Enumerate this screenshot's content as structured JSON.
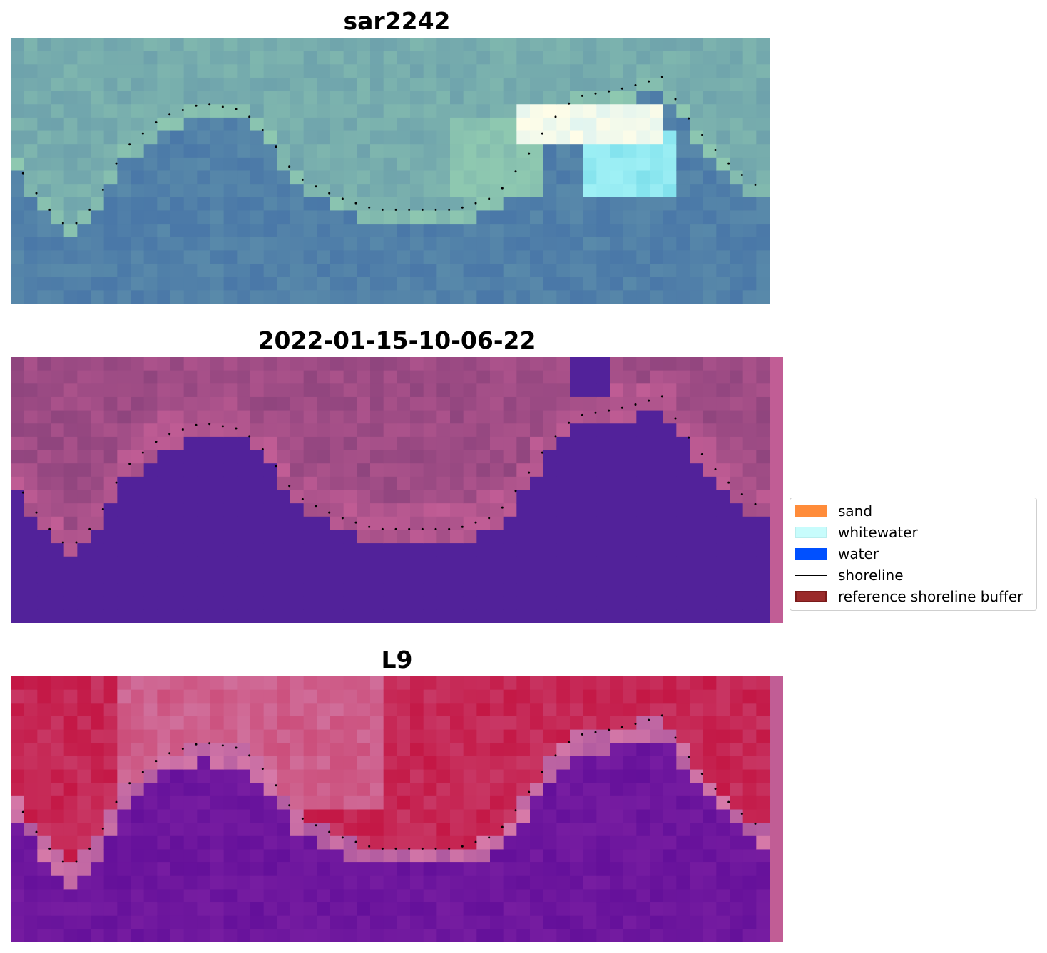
{
  "panels": [
    {
      "title": "sar2242"
    },
    {
      "title": "2022-01-15-10-06-22"
    },
    {
      "title": "L9"
    }
  ],
  "legend": {
    "items": [
      {
        "label": "sand",
        "color": "#ff8c3a",
        "kind": "patch"
      },
      {
        "label": "whitewater",
        "color": "#c8fcfc",
        "kind": "patch"
      },
      {
        "label": "water",
        "color": "#0050ff",
        "kind": "patch"
      },
      {
        "label": "shoreline",
        "color": "#000000",
        "kind": "line"
      },
      {
        "label": "reference shoreline buffer",
        "color": "#9a2a2a",
        "kind": "patch"
      }
    ]
  },
  "colors": {
    "rgb_water": "#4a78a8",
    "rgb_sand": "#8ec8b0",
    "classified_water": "#52229a",
    "classified_land": "#7a3a74",
    "classified_buffer": "#c15d95",
    "mndwi_land": "#c20c3a",
    "mndwi_water": "#64109a"
  }
}
